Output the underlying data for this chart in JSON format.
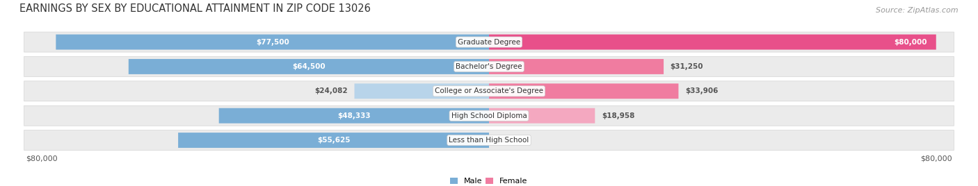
{
  "title": "EARNINGS BY SEX BY EDUCATIONAL ATTAINMENT IN ZIP CODE 13026",
  "source": "Source: ZipAtlas.com",
  "categories": [
    "Less than High School",
    "High School Diploma",
    "College or Associate's Degree",
    "Bachelor's Degree",
    "Graduate Degree"
  ],
  "male_values": [
    55625,
    48333,
    24082,
    64500,
    77500
  ],
  "female_values": [
    0,
    18958,
    33906,
    31250,
    80000
  ],
  "max_value": 80000,
  "male_color": "#7aaed6",
  "male_color_light": "#b8d4ea",
  "female_color": "#f07ca0",
  "female_color_dark": "#e8508a",
  "male_label_color": "#ffffff",
  "female_label_color": "#ffffff",
  "value_label_dark_color": "#555555",
  "row_bg_color": "#ebebeb",
  "axis_label_color": "#555555",
  "title_color": "#333333",
  "title_fontsize": 10.5,
  "source_fontsize": 8,
  "label_fontsize": 7.5,
  "category_fontsize": 7.5,
  "axis_tick_fontsize": 8,
  "legend_fontsize": 8,
  "background_color": "#ffffff"
}
